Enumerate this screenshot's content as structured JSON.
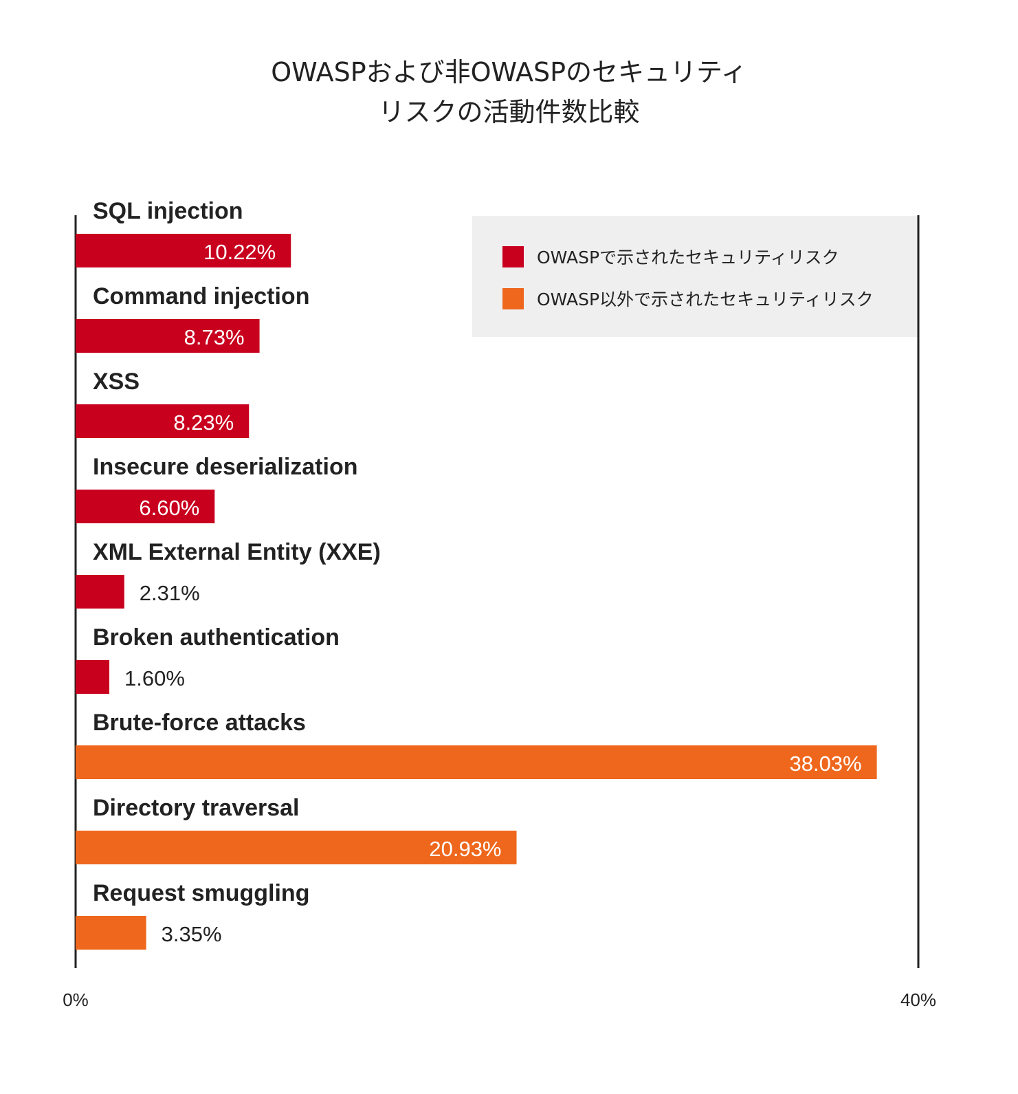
{
  "chart_data": {
    "type": "bar",
    "orientation": "horizontal",
    "title_lines": [
      "OWASPおよび非OWASPのセキュリティ",
      "リスクの活動件数比較"
    ],
    "categories": [
      "SQL injection",
      "Command injection",
      "XSS",
      "Insecure deserialization",
      "XML External Entity (XXE)",
      "Broken authentication",
      "Brute-force attacks",
      "Directory traversal",
      "Request smuggling"
    ],
    "values": [
      10.22,
      8.73,
      8.23,
      6.6,
      2.31,
      1.6,
      38.03,
      20.93,
      3.35
    ],
    "value_labels": [
      "10.22%",
      "8.73%",
      "8.23%",
      "6.60%",
      "2.31%",
      "1.60%",
      "38.03%",
      "20.93%",
      "3.35%"
    ],
    "groups": [
      "owasp",
      "owasp",
      "owasp",
      "owasp",
      "owasp",
      "owasp",
      "non_owasp",
      "non_owasp",
      "non_owasp"
    ],
    "series": [
      {
        "key": "owasp",
        "name": "OWASPで示されたセキュリティリスク",
        "color": "#c8001e"
      },
      {
        "key": "non_owasp",
        "name": "OWASP以外で示されたセキュリティリスク",
        "color": "#ee671c"
      }
    ],
    "xlim": [
      0,
      40
    ],
    "x_ticks": [
      "0%",
      "40%"
    ],
    "legend_position": "top-right",
    "grid": false
  }
}
